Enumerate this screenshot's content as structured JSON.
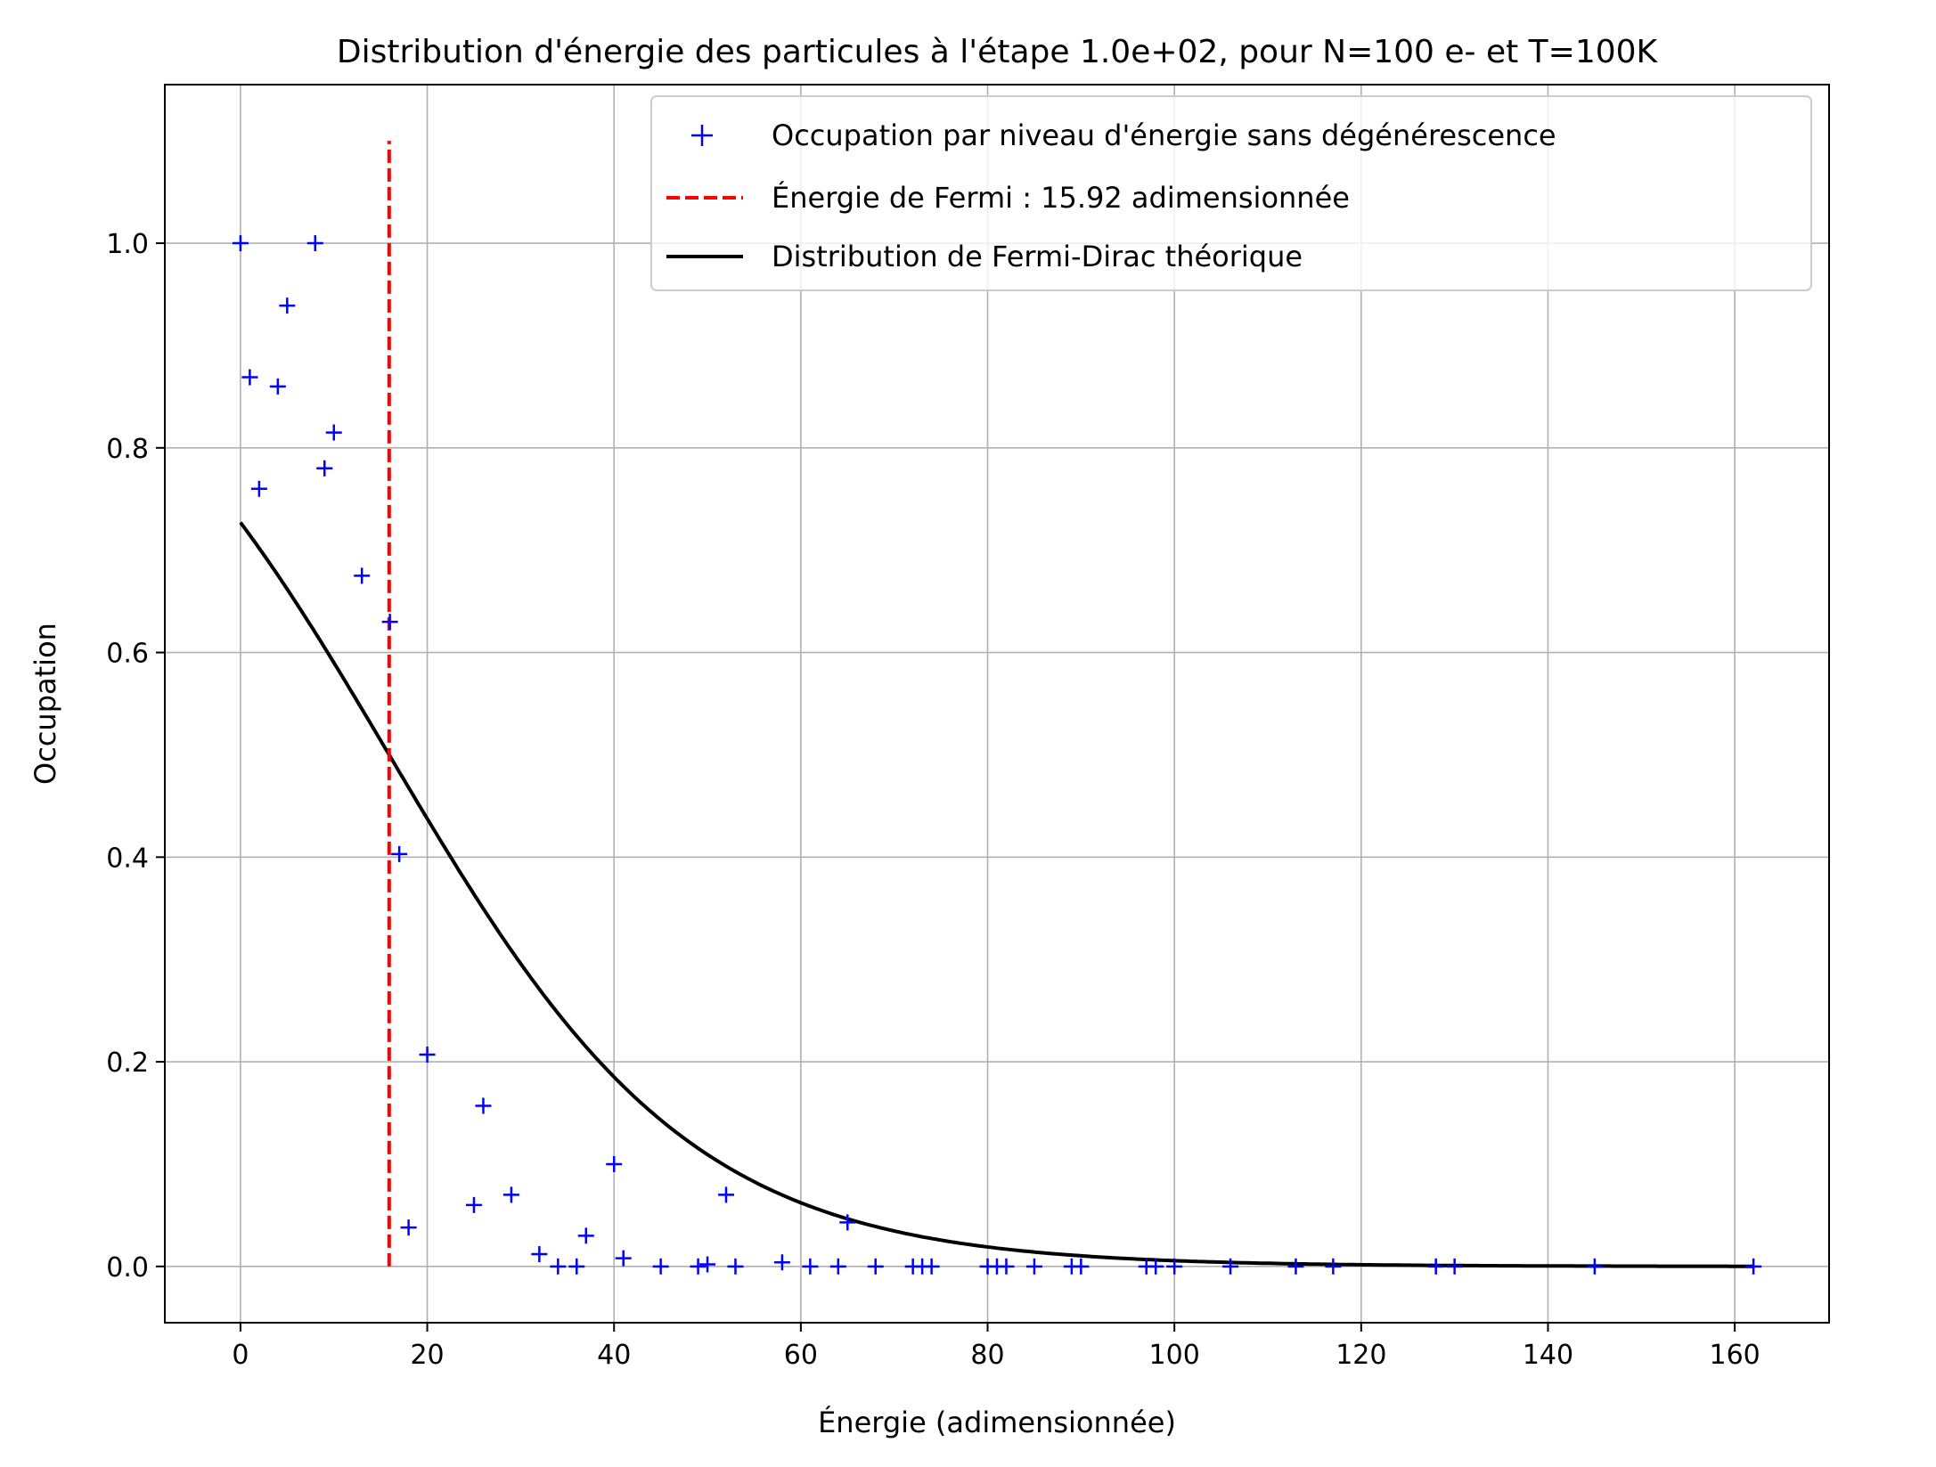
{
  "chart_data": {
    "type": "scatter",
    "title": "Distribution d'énergie des particules à l'étape 1.0e+02, pour N=100 e- et T=100K",
    "xlabel": "Énergie (adimensionnée)",
    "ylabel": "Occupation",
    "xlim": [
      -8.1,
      170.1
    ],
    "ylim": [
      -0.055,
      1.155
    ],
    "xticks": [
      0,
      20,
      40,
      60,
      80,
      100,
      120,
      140,
      160
    ],
    "xtick_labels": [
      "0",
      "20",
      "40",
      "60",
      "80",
      "100",
      "120",
      "140",
      "160"
    ],
    "yticks": [
      0.0,
      0.2,
      0.4,
      0.6,
      0.8,
      1.0
    ],
    "ytick_labels": [
      "0.0",
      "0.2",
      "0.4",
      "0.6",
      "0.8",
      "1.0"
    ],
    "grid": true,
    "legend_position": "upper right",
    "legend": [
      "Occupation par niveau d'énergie sans dégénérescence",
      "Énergie de Fermi : 15.92 adimensionnée",
      "Distribution de Fermi-Dirac théorique"
    ],
    "series": [
      {
        "name": "Occupation par niveau d'énergie sans dégénérescence",
        "style": "markers",
        "marker": "+",
        "color": "#0000ff",
        "points": [
          [
            0,
            1.0
          ],
          [
            1,
            0.869
          ],
          [
            2,
            0.76
          ],
          [
            4,
            0.86
          ],
          [
            5,
            0.939
          ],
          [
            8,
            1.0
          ],
          [
            9,
            0.78
          ],
          [
            10,
            0.815
          ],
          [
            13,
            0.675
          ],
          [
            16,
            0.63
          ],
          [
            17,
            0.403
          ],
          [
            18,
            0.038
          ],
          [
            20,
            0.207
          ],
          [
            25,
            0.06
          ],
          [
            26,
            0.157
          ],
          [
            29,
            0.07
          ],
          [
            32,
            0.012
          ],
          [
            34,
            0.0
          ],
          [
            36,
            0.0
          ],
          [
            37,
            0.03
          ],
          [
            40,
            0.1
          ],
          [
            41,
            0.008
          ],
          [
            45,
            0.0
          ],
          [
            49,
            0.0
          ],
          [
            50,
            0.002
          ],
          [
            52,
            0.07
          ],
          [
            53,
            0.0
          ],
          [
            58,
            0.004
          ],
          [
            61,
            0.0
          ],
          [
            64,
            0.0
          ],
          [
            65,
            0.043
          ],
          [
            68,
            0.0
          ],
          [
            72,
            0.0
          ],
          [
            73,
            0.0
          ],
          [
            74,
            0.0
          ],
          [
            80,
            0.0
          ],
          [
            81,
            0.0
          ],
          [
            82,
            0.0
          ],
          [
            85,
            0.0
          ],
          [
            89,
            0.0
          ],
          [
            90,
            0.0
          ],
          [
            97,
            0.0
          ],
          [
            98,
            0.0
          ],
          [
            100,
            0.0
          ],
          [
            106,
            0.0
          ],
          [
            113,
            0.0
          ],
          [
            117,
            0.0
          ],
          [
            128,
            0.0
          ],
          [
            130,
            0.0
          ],
          [
            145,
            0.0
          ],
          [
            162,
            0.0
          ]
        ]
      },
      {
        "name": "Énergie de Fermi : 15.92 adimensionnée",
        "style": "dashed",
        "color": "#ff0000",
        "x": 15.92,
        "y_range": [
          0.0,
          1.1
        ]
      },
      {
        "name": "Distribution de Fermi-Dirac théorique",
        "style": "line",
        "color": "#000000",
        "x_range": [
          0,
          162
        ],
        "mu": 15.92,
        "kT": 16.25,
        "x_sample": [
          0,
          10,
          20,
          30,
          40,
          60,
          80,
          100,
          162
        ],
        "y_sample": [
          0.634,
          0.487,
          0.333,
          0.207,
          0.122,
          0.038,
          0.012,
          0.004,
          0.0
        ]
      }
    ]
  }
}
